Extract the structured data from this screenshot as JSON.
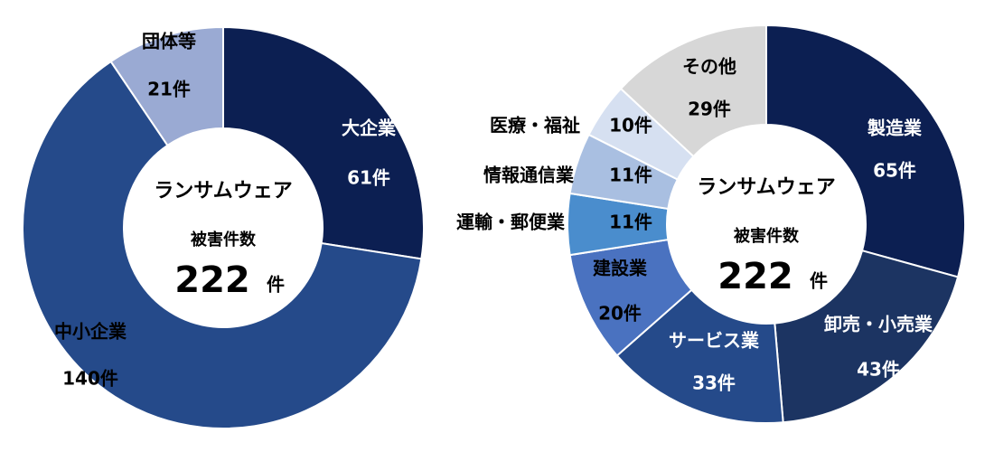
{
  "chart_data": [
    {
      "type": "pie",
      "center_title": [
        "ランサムウェア",
        "被害件数"
      ],
      "center_value": 222,
      "center_unit": "件",
      "categories": [
        "大企業",
        "中小企業",
        "団体等"
      ],
      "values": [
        61,
        140,
        21
      ],
      "value_labels": [
        "61件",
        "140件",
        "21件"
      ],
      "colors": [
        "#0c1f52",
        "#254a8a",
        "#9aaad3"
      ]
    },
    {
      "type": "pie",
      "center_title": [
        "ランサムウェア",
        "被害件数"
      ],
      "center_value": 222,
      "center_unit": "件",
      "categories": [
        "製造業",
        "卸売・小売業",
        "サービス業",
        "建設業",
        "運輸・郵便業",
        "情報通信業",
        "医療・福祉",
        "その他"
      ],
      "values": [
        65,
        43,
        33,
        20,
        11,
        11,
        10,
        29
      ],
      "value_labels": [
        "65件",
        "43件",
        "33件",
        "20件",
        "11件",
        "11件",
        "10件",
        "29件"
      ],
      "colors": [
        "#0c1f52",
        "#1c3462",
        "#254a8a",
        "#4a72c0",
        "#4a8dcd",
        "#a9bfe1",
        "#d6e0f1",
        "#d7d7d7"
      ]
    }
  ]
}
